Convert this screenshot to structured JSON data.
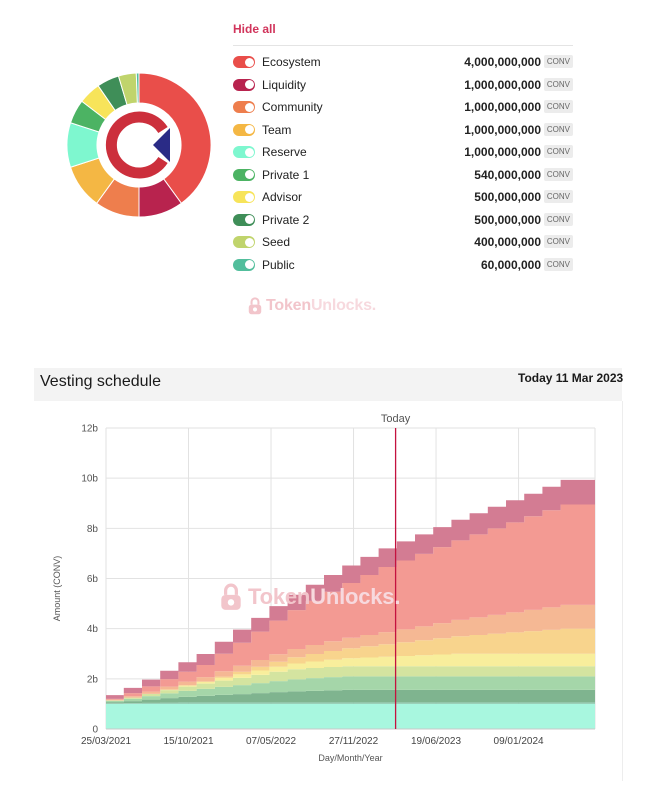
{
  "allocation": {
    "hide_all": "Hide all",
    "unit": "CONV",
    "items": [
      {
        "name": "Ecosystem",
        "amount": "4,000,000,000",
        "value": 4000000000,
        "color": "#e94e4a"
      },
      {
        "name": "Liquidity",
        "amount": "1,000,000,000",
        "value": 1000000000,
        "color": "#b8234e"
      },
      {
        "name": "Community",
        "amount": "1,000,000,000",
        "value": 1000000000,
        "color": "#ee7e4d"
      },
      {
        "name": "Team",
        "amount": "1,000,000,000",
        "value": 1000000000,
        "color": "#f4b744"
      },
      {
        "name": "Reserve",
        "amount": "1,000,000,000",
        "value": 1000000000,
        "color": "#7ef7cf"
      },
      {
        "name": "Private 1",
        "amount": "540,000,000",
        "value": 540000000,
        "color": "#4cb363"
      },
      {
        "name": "Advisor",
        "amount": "500,000,000",
        "value": 500000000,
        "color": "#f7e45a"
      },
      {
        "name": "Private 2",
        "amount": "500,000,000",
        "value": 500000000,
        "color": "#3f8e58"
      },
      {
        "name": "Seed",
        "amount": "400,000,000",
        "value": 400000000,
        "color": "#c0d46c"
      },
      {
        "name": "Public",
        "amount": "60,000,000",
        "value": 60000000,
        "color": "#52be9c"
      }
    ]
  },
  "watermark": {
    "part1": "Token",
    "part2": "Unlocks."
  },
  "vesting": {
    "title": "Vesting schedule",
    "today_date": "Today 11 Mar 2023",
    "today_label": "Today"
  },
  "chart_data": {
    "type": "area",
    "stacked": true,
    "step": true,
    "xlabel": "Day/Month/Year",
    "ylabel": "Amount (CONV)",
    "ylim": [
      0,
      12000000000
    ],
    "yticks": [
      "0",
      "2b",
      "4b",
      "6b",
      "8b",
      "10b",
      "12b"
    ],
    "xticks": [
      "25/03/2021",
      "15/10/2021",
      "07/05/2022",
      "27/11/2022",
      "19/06/2023",
      "09/01/2024"
    ],
    "xlim": [
      "2021-03-25",
      "2024-07-16"
    ],
    "today": "2023-03-11",
    "x": [
      "2021-03-25",
      "2021-05-08",
      "2021-06-22",
      "2021-08-06",
      "2021-09-20",
      "2021-11-04",
      "2021-12-19",
      "2022-02-02",
      "2022-03-19",
      "2022-05-03",
      "2022-06-17",
      "2022-08-01",
      "2022-09-15",
      "2022-10-30",
      "2022-12-14",
      "2023-01-28",
      "2023-03-14",
      "2023-04-28",
      "2023-06-12",
      "2023-07-27",
      "2023-09-10",
      "2023-10-25",
      "2023-12-09",
      "2024-01-23",
      "2024-03-08",
      "2024-04-22",
      "2024-07-16"
    ],
    "series": [
      {
        "name": "Reserve",
        "color": "#a8f7df",
        "values": [
          1.0,
          1.0,
          1.0,
          1.0,
          1.0,
          1.0,
          1.0,
          1.0,
          1.0,
          1.0,
          1.0,
          1.0,
          1.0,
          1.0,
          1.0,
          1.0,
          1.0,
          1.0,
          1.0,
          1.0,
          1.0,
          1.0,
          1.0,
          1.0,
          1.0,
          1.0,
          1.0
        ]
      },
      {
        "name": "Public",
        "color": "#8fc9b0",
        "values": [
          0.02,
          0.03,
          0.04,
          0.05,
          0.06,
          0.06,
          0.06,
          0.06,
          0.06,
          0.06,
          0.06,
          0.06,
          0.06,
          0.06,
          0.06,
          0.06,
          0.06,
          0.06,
          0.06,
          0.06,
          0.06,
          0.06,
          0.06,
          0.06,
          0.06,
          0.06,
          0.06
        ]
      },
      {
        "name": "Private 2",
        "color": "#7fb48f",
        "values": [
          0.05,
          0.08,
          0.13,
          0.18,
          0.22,
          0.26,
          0.3,
          0.33,
          0.37,
          0.41,
          0.44,
          0.46,
          0.48,
          0.5,
          0.5,
          0.5,
          0.5,
          0.5,
          0.5,
          0.5,
          0.5,
          0.5,
          0.5,
          0.5,
          0.5,
          0.5,
          0.5
        ]
      },
      {
        "name": "Private 1",
        "color": "#a5d6a9",
        "values": [
          0.05,
          0.09,
          0.14,
          0.19,
          0.24,
          0.28,
          0.32,
          0.36,
          0.4,
          0.44,
          0.48,
          0.51,
          0.53,
          0.54,
          0.54,
          0.54,
          0.54,
          0.54,
          0.54,
          0.54,
          0.54,
          0.54,
          0.54,
          0.54,
          0.54,
          0.54,
          0.54
        ]
      },
      {
        "name": "Seed",
        "color": "#d4e4a0",
        "values": [
          0.02,
          0.05,
          0.09,
          0.13,
          0.17,
          0.21,
          0.25,
          0.29,
          0.33,
          0.37,
          0.4,
          0.4,
          0.4,
          0.4,
          0.4,
          0.4,
          0.4,
          0.4,
          0.4,
          0.4,
          0.4,
          0.4,
          0.4,
          0.4,
          0.4,
          0.4,
          0.4
        ]
      },
      {
        "name": "Advisor",
        "color": "#f8ee9c",
        "values": [
          0.0,
          0.0,
          0.0,
          0.02,
          0.05,
          0.08,
          0.11,
          0.14,
          0.17,
          0.2,
          0.23,
          0.26,
          0.29,
          0.32,
          0.35,
          0.38,
          0.41,
          0.44,
          0.47,
          0.5,
          0.5,
          0.5,
          0.5,
          0.5,
          0.5,
          0.5,
          0.5
        ]
      },
      {
        "name": "Team",
        "color": "#f8d48d",
        "values": [
          0.0,
          0.0,
          0.0,
          0.0,
          0.0,
          0.0,
          0.05,
          0.1,
          0.15,
          0.2,
          0.25,
          0.3,
          0.35,
          0.4,
          0.45,
          0.5,
          0.55,
          0.6,
          0.65,
          0.7,
          0.75,
          0.8,
          0.85,
          0.9,
          0.95,
          1.0,
          1.0
        ]
      },
      {
        "name": "Community",
        "color": "#f5b894",
        "values": [
          0.03,
          0.06,
          0.09,
          0.12,
          0.15,
          0.18,
          0.21,
          0.24,
          0.27,
          0.3,
          0.33,
          0.36,
          0.39,
          0.42,
          0.45,
          0.48,
          0.51,
          0.55,
          0.6,
          0.65,
          0.7,
          0.75,
          0.8,
          0.85,
          0.9,
          0.95,
          1.0
        ]
      },
      {
        "name": "Ecosystem",
        "color": "#f39a93",
        "values": [
          0.03,
          0.12,
          0.21,
          0.3,
          0.39,
          0.48,
          0.7,
          0.92,
          1.13,
          1.34,
          1.55,
          1.76,
          1.97,
          2.18,
          2.39,
          2.6,
          2.75,
          2.89,
          3.03,
          3.17,
          3.31,
          3.45,
          3.59,
          3.73,
          3.87,
          4.0,
          4.0
        ]
      },
      {
        "name": "Liquidity",
        "color": "#d37c93",
        "values": [
          0.15,
          0.21,
          0.27,
          0.33,
          0.38,
          0.44,
          0.48,
          0.52,
          0.55,
          0.58,
          0.61,
          0.64,
          0.67,
          0.7,
          0.72,
          0.74,
          0.76,
          0.78,
          0.8,
          0.82,
          0.84,
          0.86,
          0.88,
          0.9,
          0.94,
          0.98,
          1.0
        ]
      }
    ]
  }
}
